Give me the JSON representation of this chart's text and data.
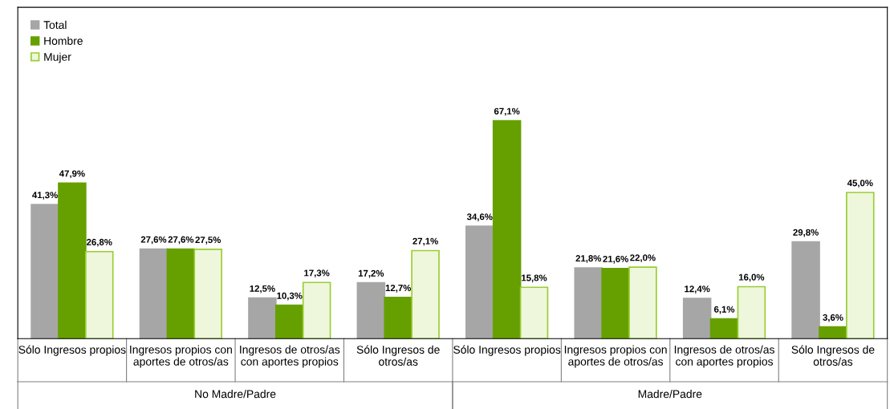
{
  "chart_data": {
    "type": "bar",
    "categories": [
      "Sólo Ingresos propios",
      "Ingresos propios con\naportes de otros/as",
      "Ingresos de otros/as\ncon aportes propios",
      "Sólo Ingresos de\notros/as",
      "Sólo Ingresos propios",
      "Ingresos propios con\naportes de otros/as",
      "Ingresos de otros/as\ncon aportes propios",
      "Sólo Ingresos de\notros/as"
    ],
    "series": [
      {
        "name": "Total",
        "color": "#a6a6a6",
        "values": [
          41.3,
          27.6,
          12.5,
          17.2,
          34.6,
          21.8,
          12.4,
          29.8
        ],
        "value_labels": [
          "41,3%",
          "27,6%",
          "12,5%",
          "17,2%",
          "34,6%",
          "21,8%",
          "12,4%",
          "29,8%"
        ]
      },
      {
        "name": "Hombre",
        "color": "#66a000",
        "values": [
          47.9,
          27.6,
          10.3,
          12.7,
          67.1,
          21.6,
          6.1,
          3.6
        ],
        "value_labels": [
          "47,9%",
          "27,6%",
          "10,3%",
          "12,7%",
          "67,1%",
          "21,6%",
          "6,1%",
          "3,6%"
        ]
      },
      {
        "name": "Mujer",
        "color": "#eef7dc",
        "values": [
          26.8,
          27.5,
          17.3,
          27.1,
          15.8,
          22.0,
          16.0,
          45.0
        ],
        "value_labels": [
          "26,8%",
          "27,5%",
          "17,3%",
          "27,1%",
          "15,8%",
          "22,0%",
          "16,0%",
          "45,0%"
        ]
      }
    ],
    "annotations": [
      "No Madre/Padre",
      "Madre/Padre"
    ],
    "legend": "top left",
    "grid": false
  }
}
